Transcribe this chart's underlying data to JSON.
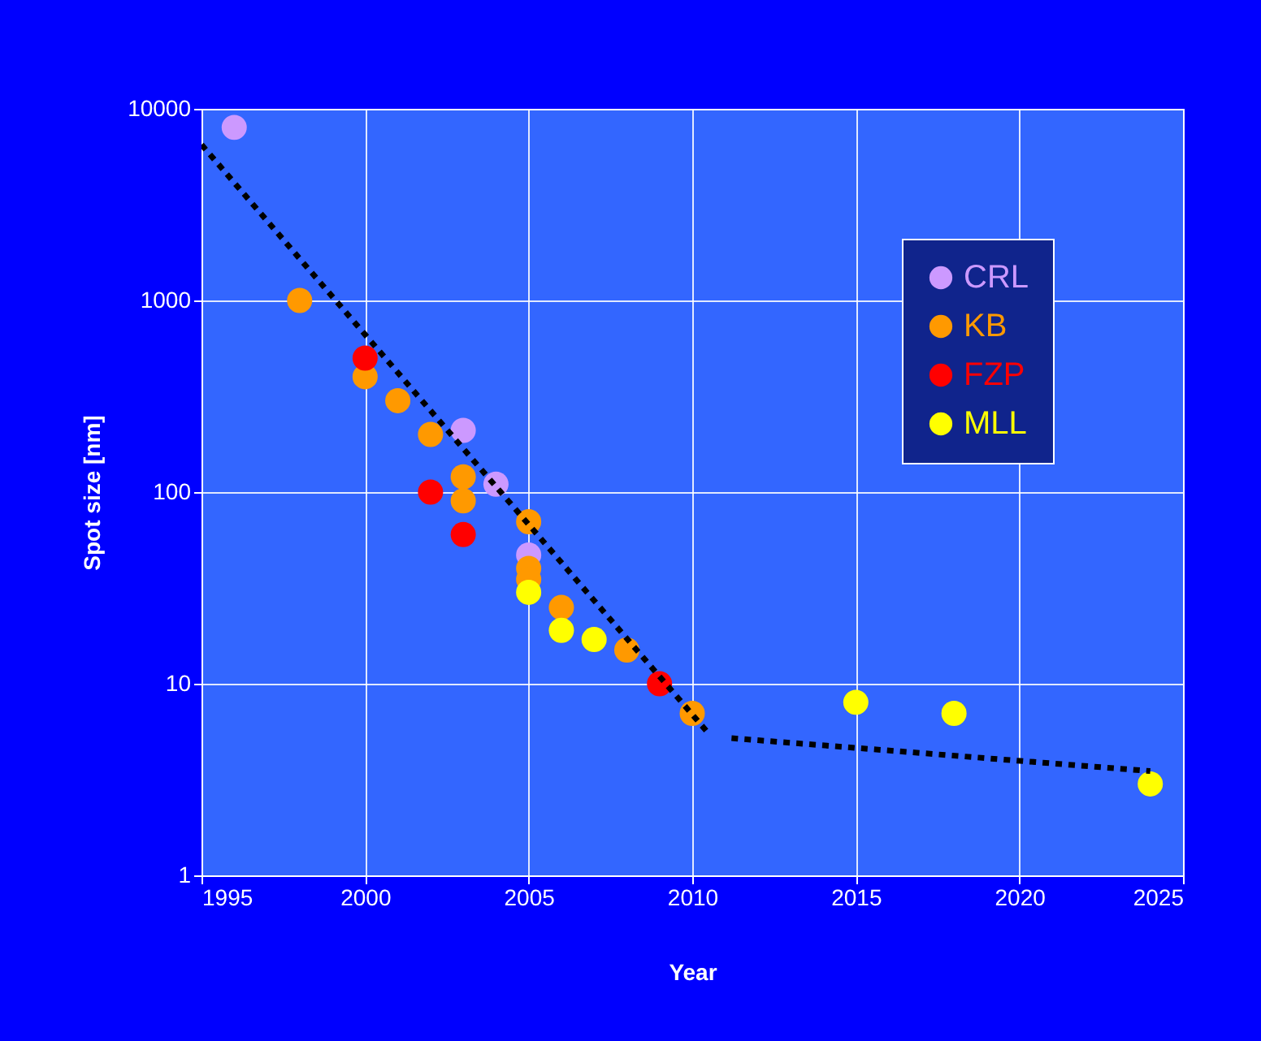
{
  "chart_data": {
    "type": "scatter",
    "xlabel": "Year",
    "ylabel": "Spot size [nm]",
    "xlim": [
      1995,
      2025
    ],
    "xticks": [
      1995,
      2000,
      2005,
      2010,
      2015,
      2020,
      2025
    ],
    "ylim": [
      1,
      10000
    ],
    "yticks": [
      1,
      10,
      100,
      1000,
      10000
    ],
    "log": "y",
    "grid": true,
    "legend": "top right",
    "series": [
      {
        "name": "CRL",
        "color": "#cc99ff",
        "marker": "circle",
        "x": [
          1996,
          2003,
          2004,
          2005
        ],
        "values": [
          8000,
          210,
          110,
          47
        ]
      },
      {
        "name": "KB",
        "color": "#ff9900",
        "marker": "circle",
        "x": [
          1998,
          2000,
          2001,
          2002,
          2003,
          2003,
          2005,
          2005,
          2005,
          2006,
          2008,
          2010
        ],
        "values": [
          1000,
          400,
          300,
          200,
          120,
          90,
          70,
          40,
          35,
          25,
          15,
          7
        ]
      },
      {
        "name": "FZP",
        "color": "#ff0000",
        "marker": "circle",
        "x": [
          2000,
          2002,
          2003,
          2009
        ],
        "values": [
          500,
          100,
          60,
          10
        ]
      },
      {
        "name": "MLL",
        "color": "#ffff00",
        "marker": "circle",
        "x": [
          2005,
          2006,
          2007,
          2015,
          2018,
          2024
        ],
        "values": [
          30,
          19,
          17,
          8,
          7,
          3
        ]
      },
      {
        "type": "line",
        "color": "#000000",
        "line_style": "dotted",
        "x": [
          1995,
          2010.5
        ],
        "values": [
          6500,
          5.5
        ]
      },
      {
        "type": "line",
        "color": "#000000",
        "line_style": "dotted",
        "x": [
          2011.2,
          2024
        ],
        "values": [
          5.2,
          3.5
        ]
      }
    ]
  }
}
